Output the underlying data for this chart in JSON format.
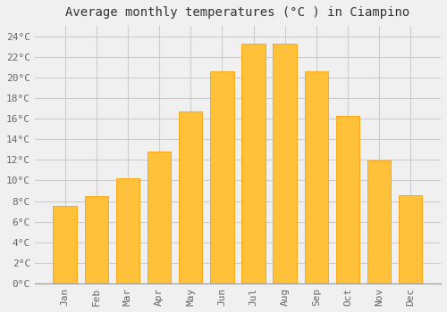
{
  "title": "Average monthly temperatures (°C ) in Ciampino",
  "months": [
    "Jan",
    "Feb",
    "Mar",
    "Apr",
    "May",
    "Jun",
    "Jul",
    "Aug",
    "Sep",
    "Oct",
    "Nov",
    "Dec"
  ],
  "temperatures": [
    7.5,
    8.5,
    10.2,
    12.8,
    16.7,
    20.6,
    23.3,
    23.3,
    20.6,
    16.3,
    11.9,
    8.6
  ],
  "bar_color": "#FFC03A",
  "bar_edge_color": "#FFA000",
  "ylim": [
    0,
    25
  ],
  "ytick_step": 2,
  "background_color": "#F0F0F0",
  "grid_color": "#CCCCCC",
  "title_fontsize": 10,
  "tick_fontsize": 8,
  "bar_width": 0.75
}
